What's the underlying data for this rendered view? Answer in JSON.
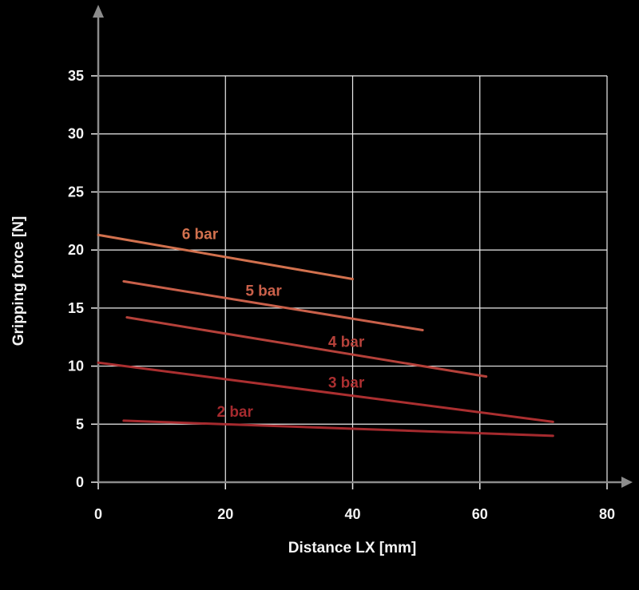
{
  "chart_data": {
    "type": "line",
    "title": "",
    "xlabel": "Distance LX [mm]",
    "ylabel": "Gripping force [N]",
    "xlim": [
      0,
      80
    ],
    "ylim": [
      0,
      35
    ],
    "x_ticks": [
      0,
      20,
      40,
      60,
      80
    ],
    "y_ticks": [
      0,
      5,
      10,
      15,
      20,
      25,
      30,
      35
    ],
    "grid": true,
    "legend_position": "inline-labels",
    "colors": {
      "background": "#000000",
      "grid": "#ededed",
      "axis": "#8c8c8c",
      "tick_text": "#f5f5f5"
    },
    "series": [
      {
        "name": "6 bar",
        "x": [
          0,
          40
        ],
        "y": [
          21.3,
          17.5
        ],
        "color": "#d2714e",
        "label": "6 bar",
        "label_x": 16,
        "label_y": 21.3
      },
      {
        "name": "5 bar",
        "x": [
          4,
          51
        ],
        "y": [
          17.3,
          13.1
        ],
        "color": "#c9604a",
        "label": "5 bar",
        "label_x": 26,
        "label_y": 16.4
      },
      {
        "name": "4 bar",
        "x": [
          4.5,
          61
        ],
        "y": [
          14.2,
          9.1
        ],
        "color": "#b5413a",
        "label": "4 bar",
        "label_x": 39,
        "label_y": 12.0
      },
      {
        "name": "3 bar",
        "x": [
          0,
          71.5
        ],
        "y": [
          10.3,
          5.2
        ],
        "color": "#ab2f30",
        "label": "3 bar",
        "label_x": 39,
        "label_y": 8.5
      },
      {
        "name": "2 bar",
        "x": [
          4,
          71.5
        ],
        "y": [
          5.3,
          4.0
        ],
        "color": "#a52a2e",
        "label": "2 bar",
        "label_x": 21.5,
        "label_y": 6.0
      }
    ]
  }
}
